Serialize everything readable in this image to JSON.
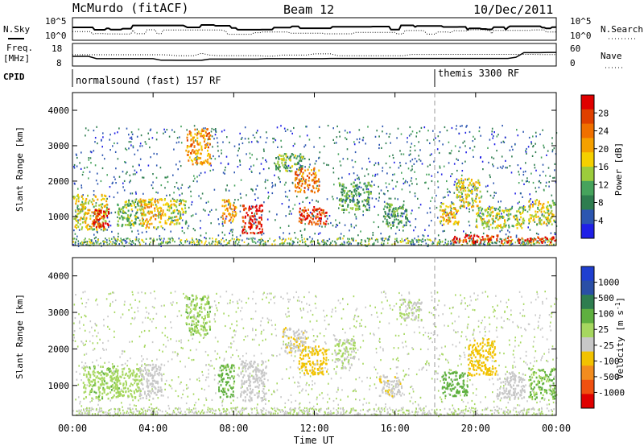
{
  "header": {
    "station": "McMurdo (fitACF)",
    "beam": "Beam 12",
    "date": "10/Dec/2011"
  },
  "summary": {
    "left_labels": {
      "nsky": "N.Sky",
      "freq": "Freq.",
      "freq_unit": "[MHz]",
      "cpid": "CPID"
    },
    "right_labels": {
      "nsearch": "N.Search",
      "nave": "Nave"
    },
    "nsky_ticks": [
      "10^5",
      "10^0"
    ],
    "nsearch_ticks": [
      "10^5",
      "10^0"
    ],
    "freq_ticks": [
      "18",
      "8"
    ],
    "nave_ticks": [
      "60",
      "0"
    ],
    "cpid_segments": [
      {
        "label": "normalsound (fast) 157 RF",
        "start_hour": 0,
        "end_hour": 18
      },
      {
        "label": "themis 3300 RF",
        "start_hour": 18,
        "end_hour": 24
      }
    ]
  },
  "x_axis": {
    "label": "Time UT",
    "ticks": [
      "00:00",
      "04:00",
      "08:00",
      "12:00",
      "16:00",
      "20:00",
      "00:00"
    ],
    "range_hours": [
      0,
      24
    ]
  },
  "colors": {
    "power": [
      "#1f1fe6",
      "#2c56b0",
      "#2e7d4f",
      "#46a35c",
      "#9ccc3c",
      "#f5d000",
      "#f5a000",
      "#f07000",
      "#e04000",
      "#e00000"
    ],
    "velocity": [
      "#1f3fd0",
      "#2a4fa6",
      "#2e7d4f",
      "#5fb03f",
      "#a6d75f",
      "#c8c8c8",
      "#f2c200",
      "#f28c1e",
      "#f05010",
      "#e00000"
    ]
  },
  "chart_data": [
    {
      "type": "heatmap",
      "title": "Power",
      "xlabel": "Time UT",
      "ylabel": "Slant Range [km]",
      "xlim": [
        0,
        24
      ],
      "ylim": [
        180,
        4500
      ],
      "yticks": [
        1000,
        2000,
        3000,
        4000
      ],
      "colorbar": {
        "label": "Power [dB]",
        "ticks": [
          "28",
          "24",
          "20",
          "16",
          "12",
          "8",
          "4"
        ],
        "range": [
          0,
          30
        ]
      },
      "regions": [
        {
          "t0": 0.0,
          "t1": 1.7,
          "r0": 650,
          "r1": 1650,
          "level": 16
        },
        {
          "t0": 1.0,
          "t1": 1.8,
          "r0": 700,
          "r1": 1250,
          "level": 28
        },
        {
          "t0": 2.2,
          "t1": 3.5,
          "r0": 750,
          "r1": 1500,
          "level": 12
        },
        {
          "t0": 3.3,
          "t1": 4.6,
          "r0": 700,
          "r1": 1550,
          "level": 18
        },
        {
          "t0": 4.6,
          "t1": 5.6,
          "r0": 800,
          "r1": 1500,
          "level": 14
        },
        {
          "t0": 5.6,
          "t1": 6.8,
          "r0": 2500,
          "r1": 3500,
          "level": 20
        },
        {
          "t0": 7.4,
          "t1": 8.1,
          "r0": 850,
          "r1": 1500,
          "level": 20
        },
        {
          "t0": 8.4,
          "t1": 9.4,
          "r0": 550,
          "r1": 1350,
          "level": 28
        },
        {
          "t0": 10.0,
          "t1": 11.4,
          "r0": 2300,
          "r1": 2800,
          "level": 12
        },
        {
          "t0": 11.0,
          "t1": 12.2,
          "r0": 1700,
          "r1": 2400,
          "level": 22
        },
        {
          "t0": 11.2,
          "t1": 12.6,
          "r0": 800,
          "r1": 1300,
          "level": 26
        },
        {
          "t0": 13.2,
          "t1": 14.8,
          "r0": 1200,
          "r1": 2000,
          "level": 10
        },
        {
          "t0": 15.4,
          "t1": 16.6,
          "r0": 700,
          "r1": 1400,
          "level": 10
        },
        {
          "t0": 18.2,
          "t1": 19.2,
          "r0": 800,
          "r1": 1400,
          "level": 18
        },
        {
          "t0": 18.8,
          "t1": 21.8,
          "r0": 280,
          "r1": 500,
          "level": 26
        },
        {
          "t0": 19.0,
          "t1": 20.2,
          "r0": 1300,
          "r1": 2100,
          "level": 16
        },
        {
          "t0": 20.0,
          "t1": 22.4,
          "r0": 700,
          "r1": 1300,
          "level": 14
        },
        {
          "t0": 22.0,
          "t1": 24.0,
          "r0": 280,
          "r1": 450,
          "level": 28
        },
        {
          "t0": 22.6,
          "t1": 23.9,
          "r0": 800,
          "r1": 1500,
          "level": 16
        }
      ]
    },
    {
      "type": "heatmap",
      "title": "Velocity",
      "xlabel": "Time UT",
      "ylabel": "Slant Range [km]",
      "xlim": [
        0,
        24
      ],
      "ylim": [
        180,
        4500
      ],
      "yticks": [
        1000,
        2000,
        3000,
        4000
      ],
      "colorbar": {
        "label": "Velocity [m s^-1]",
        "ticks": [
          "1000",
          "500",
          "100",
          "25",
          "-25",
          "-100",
          "-500",
          "-1000"
        ],
        "range": [
          -1200,
          1200
        ]
      },
      "regions": [
        {
          "t0": 0.5,
          "t1": 2.3,
          "r0": 650,
          "r1": 1550,
          "level": 200
        },
        {
          "t0": 2.1,
          "t1": 3.4,
          "r0": 700,
          "r1": 1500,
          "level": 150
        },
        {
          "t0": 3.3,
          "t1": 4.4,
          "r0": 650,
          "r1": 1600,
          "level": -150
        },
        {
          "t0": 5.6,
          "t1": 6.8,
          "r0": 2400,
          "r1": 3500,
          "level": 200
        },
        {
          "t0": 7.2,
          "t1": 8.0,
          "r0": 700,
          "r1": 1600,
          "level": 300
        },
        {
          "t0": 8.3,
          "t1": 9.6,
          "r0": 600,
          "r1": 1700,
          "level": -120
        },
        {
          "t0": 10.4,
          "t1": 11.6,
          "r0": 1900,
          "r1": 2600,
          "level": -200
        },
        {
          "t0": 11.2,
          "t1": 12.6,
          "r0": 1300,
          "r1": 2100,
          "level": -300
        },
        {
          "t0": 13.0,
          "t1": 14.0,
          "r0": 1500,
          "r1": 2300,
          "level": 0
        },
        {
          "t0": 15.2,
          "t1": 16.3,
          "r0": 700,
          "r1": 1300,
          "level": -200
        },
        {
          "t0": 16.2,
          "t1": 17.3,
          "r0": 2800,
          "r1": 3400,
          "level": 0
        },
        {
          "t0": 18.3,
          "t1": 19.6,
          "r0": 700,
          "r1": 1400,
          "level": 350
        },
        {
          "t0": 19.6,
          "t1": 21.0,
          "r0": 1300,
          "r1": 2300,
          "level": -400
        },
        {
          "t0": 21.0,
          "t1": 22.4,
          "r0": 650,
          "r1": 1400,
          "level": -150
        },
        {
          "t0": 22.6,
          "t1": 23.9,
          "r0": 650,
          "r1": 1500,
          "level": 250
        }
      ]
    }
  ]
}
